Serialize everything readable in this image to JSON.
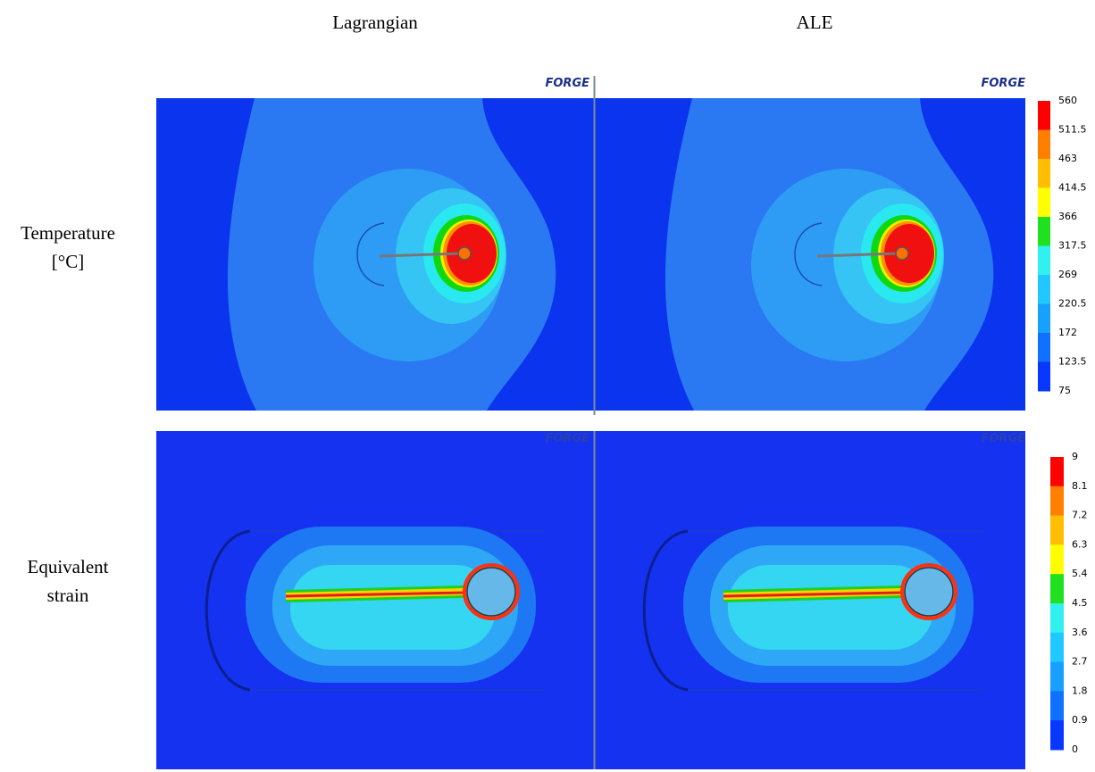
{
  "columns": [
    "Lagrangian",
    "ALE"
  ],
  "logo": "FORGE",
  "rows": [
    {
      "label": [
        "Temperature",
        "[°C]"
      ],
      "colorbar": {
        "ticks": [
          560,
          511.5,
          463,
          414.5,
          366,
          317.5,
          269,
          220.5,
          172,
          123.5,
          75
        ],
        "colors": [
          "#ff0000",
          "#ff7f00",
          "#ffbf00",
          "#ffff00",
          "#20e020",
          "#30f0f0",
          "#20c8ff",
          "#18a0ff",
          "#1070ff",
          "#0838ff"
        ]
      }
    },
    {
      "label": [
        "Equivalent",
        "strain"
      ],
      "colorbar": {
        "ticks": [
          9,
          8.1,
          7.2,
          6.3,
          5.4,
          4.5,
          3.6,
          2.7,
          1.8,
          0.9,
          0
        ],
        "colors": [
          "#ff0000",
          "#ff7f00",
          "#ffbf00",
          "#ffff00",
          "#20e020",
          "#30f0f0",
          "#20c8ff",
          "#18a0ff",
          "#1070ff",
          "#0838ff"
        ]
      }
    }
  ]
}
